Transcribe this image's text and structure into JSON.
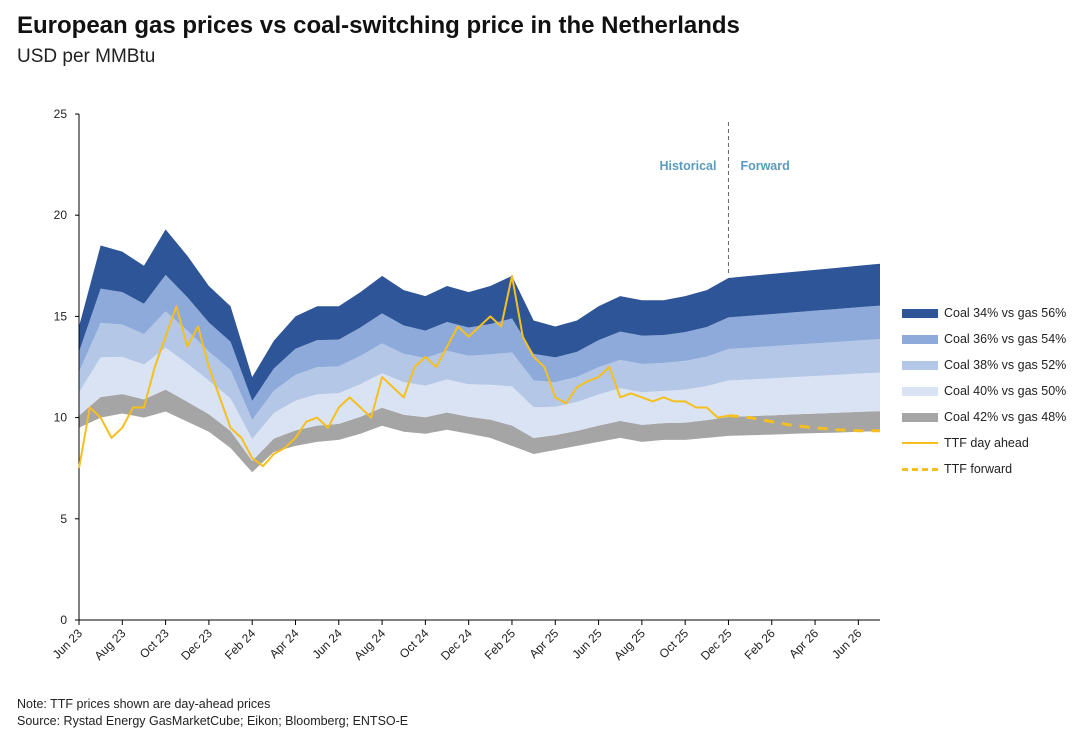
{
  "title": "European gas prices vs coal-switching price in the Netherlands",
  "subtitle": "USD per MMBtu",
  "notes": [
    "Note: TTF prices shown are day-ahead prices",
    "Source: Rystad Energy GasMarketCube; Eikon; Bloomberg; ENTSO-E"
  ],
  "colors": {
    "band1": "#2e5597",
    "band2": "#8eaadb",
    "band3": "#b4c7e7",
    "band4": "#dae3f3",
    "band5": "#a5a5a5",
    "ttf": "#f5c01f",
    "annotation": "#5b9bbd"
  },
  "chart_data": {
    "type": "area",
    "title": "European gas prices vs coal-switching price in the Netherlands",
    "ylabel": "USD per MMBtu",
    "ylim": [
      0,
      25
    ],
    "yticks": [
      0,
      5,
      10,
      15,
      20,
      25
    ],
    "x_unit": "months since Jun 23",
    "xlim": [
      0,
      37
    ],
    "xticks": [
      {
        "m": 0,
        "label": "Jun 23"
      },
      {
        "m": 2,
        "label": "Aug 23"
      },
      {
        "m": 4,
        "label": "Oct 23"
      },
      {
        "m": 6,
        "label": "Dec 23"
      },
      {
        "m": 8,
        "label": "Feb 24"
      },
      {
        "m": 10,
        "label": "Apr 24"
      },
      {
        "m": 12,
        "label": "Jun 24"
      },
      {
        "m": 14,
        "label": "Aug 24"
      },
      {
        "m": 16,
        "label": "Oct 24"
      },
      {
        "m": 18,
        "label": "Dec 24"
      },
      {
        "m": 20,
        "label": "Feb 25"
      },
      {
        "m": 22,
        "label": "Apr 25"
      },
      {
        "m": 24,
        "label": "Jun 25"
      },
      {
        "m": 26,
        "label": "Aug 25"
      },
      {
        "m": 28,
        "label": "Oct 25"
      },
      {
        "m": 30,
        "label": "Dec 25"
      },
      {
        "m": 32,
        "label": "Feb 26"
      },
      {
        "m": 34,
        "label": "Apr 26"
      },
      {
        "m": 36,
        "label": "Jun 26"
      }
    ],
    "annotations": {
      "divider_month": 30,
      "left": "Historical",
      "right": "Forward"
    },
    "band_range_lower": [
      9.5,
      10.0,
      10.2,
      10.0,
      10.3,
      9.8,
      9.3,
      8.5,
      7.3,
      8.3,
      8.6,
      8.8,
      8.9,
      9.2,
      9.6,
      9.3,
      9.2,
      9.4,
      9.2,
      9.0,
      8.6,
      8.2,
      8.4,
      8.6,
      8.8,
      9.0,
      8.8,
      8.9,
      8.9,
      9.0,
      9.1,
      9.13,
      9.16,
      9.2,
      9.23,
      9.26,
      9.3,
      9.33
    ],
    "band_range_upper": [
      14.5,
      18.5,
      18.2,
      17.5,
      19.3,
      18.0,
      16.5,
      15.5,
      12.0,
      13.8,
      15.0,
      15.5,
      15.5,
      16.2,
      17.0,
      16.3,
      16.0,
      16.5,
      16.2,
      16.5,
      17.0,
      14.8,
      14.5,
      14.8,
      15.5,
      16.0,
      15.8,
      15.8,
      16.0,
      16.3,
      16.9,
      17.0,
      17.1,
      17.2,
      17.3,
      17.4,
      17.5,
      17.6
    ],
    "band_split_fractions": [
      0,
      0.12,
      0.35,
      0.55,
      0.75,
      1
    ],
    "series": [
      {
        "name": "Coal 34% vs gas 56%",
        "type": "band",
        "color_key": "band1"
      },
      {
        "name": "Coal 36% vs gas 54%",
        "type": "band",
        "color_key": "band2"
      },
      {
        "name": "Coal 38% vs gas 52%",
        "type": "band",
        "color_key": "band3"
      },
      {
        "name": "Coal 40% vs gas 50%",
        "type": "band",
        "color_key": "band4"
      },
      {
        "name": "Coal 42% vs gas 48%",
        "type": "band",
        "color_key": "band5"
      },
      {
        "name": "TTF day ahead",
        "type": "line",
        "x": [
          0,
          0.5,
          1,
          1.5,
          2,
          2.5,
          3,
          3.5,
          4,
          4.5,
          5,
          5.5,
          6,
          6.5,
          7,
          7.5,
          8,
          8.5,
          9,
          9.5,
          10,
          10.5,
          11,
          11.5,
          12,
          12.5,
          13,
          13.5,
          14,
          14.5,
          15,
          15.5,
          16,
          16.5,
          17,
          17.5,
          18,
          18.5,
          19,
          19.5,
          20,
          20.5,
          21,
          21.5,
          22,
          22.5,
          23,
          23.5,
          24,
          24.5,
          25,
          25.5,
          26,
          26.5,
          27,
          27.5,
          28,
          28.5,
          29,
          29.5,
          30
        ],
        "values": [
          7.5,
          10.5,
          10.0,
          9.0,
          9.5,
          10.5,
          10.5,
          12.5,
          14.0,
          15.5,
          13.5,
          14.5,
          12.5,
          11.0,
          9.5,
          9.0,
          8.0,
          7.6,
          8.2,
          8.5,
          9.0,
          9.8,
          10.0,
          9.5,
          10.5,
          11.0,
          10.5,
          10.0,
          12.0,
          11.5,
          11.0,
          12.5,
          13.0,
          12.5,
          13.5,
          14.5,
          14.0,
          14.5,
          15.0,
          14.5,
          17.0,
          14.0,
          13.0,
          12.5,
          11.0,
          10.7,
          11.5,
          11.8,
          12.0,
          12.5,
          11.0,
          11.2,
          11.0,
          10.8,
          11.0,
          10.8,
          10.8,
          10.5,
          10.5,
          10.0,
          10.1
        ]
      },
      {
        "name": "TTF forward",
        "type": "line",
        "dashed": true,
        "x": [
          30,
          31,
          32,
          33,
          34,
          35,
          36,
          37
        ],
        "values": [
          10.1,
          10.0,
          9.8,
          9.6,
          9.5,
          9.4,
          9.35,
          9.35
        ]
      }
    ],
    "legend_position": "right"
  }
}
